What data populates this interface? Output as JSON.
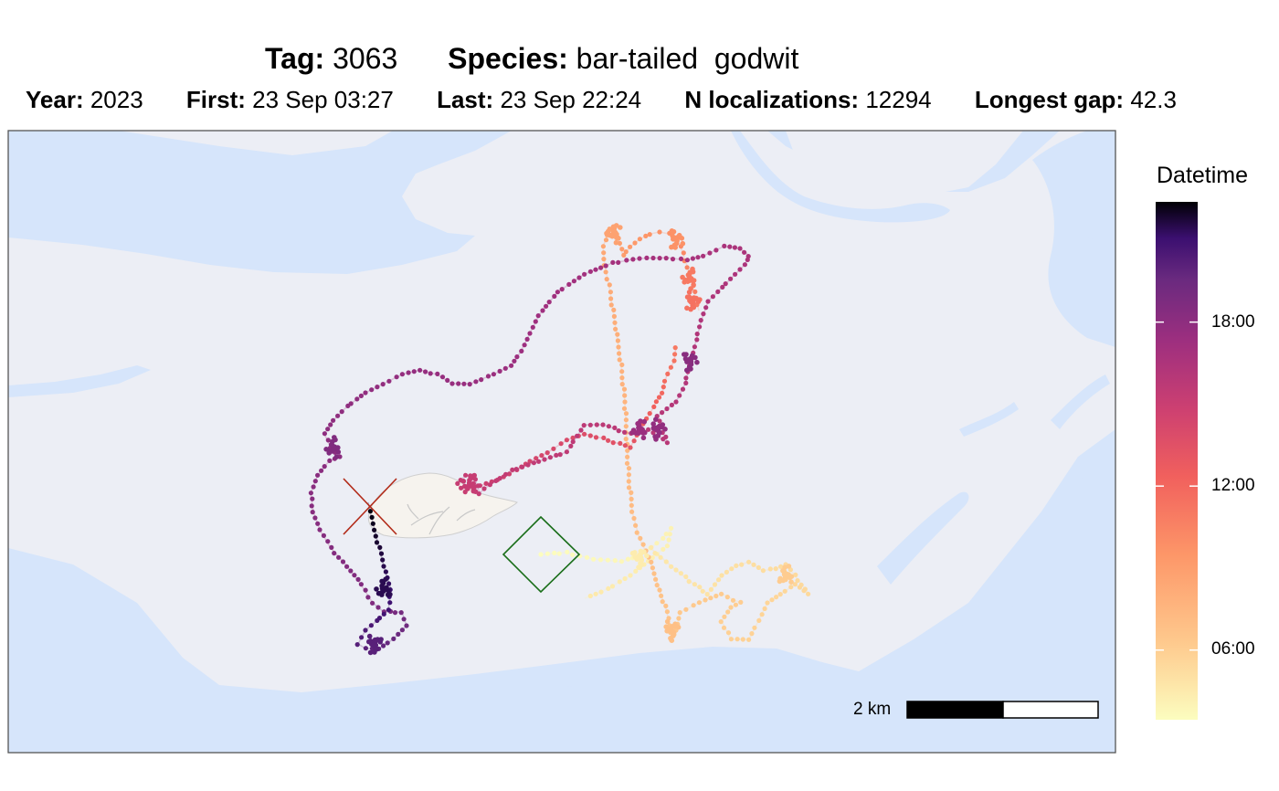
{
  "header": {
    "line1": [
      {
        "key": "Tag:",
        "value": "3063"
      },
      {
        "key": "Species:",
        "value": "bar-tailed  godwit"
      }
    ],
    "line2": [
      {
        "key": "Year:",
        "value": "2023"
      },
      {
        "key": "First:",
        "value": "23 Sep 03:27"
      },
      {
        "key": "Last:",
        "value": "23 Sep 22:24"
      },
      {
        "key": "N localizations:",
        "value": "12294"
      },
      {
        "key": "Longest gap:",
        "value": "42.3"
      }
    ]
  },
  "legend": {
    "title": "Datetime",
    "ticks": [
      "06:00",
      "12:00",
      "18:00"
    ],
    "start_hour": 3.45,
    "end_hour": 22.4,
    "tick_hours": [
      6,
      12,
      18
    ]
  },
  "scale_bar": {
    "label": "2 km"
  },
  "colors": {
    "water": "#d6e5fb",
    "land": "#eceef5",
    "island": "#f6f3ee",
    "start_marker": "#1a6e1a",
    "end_marker": "#b22a18",
    "frame": "#555555"
  },
  "markers": {
    "start_icon": "diamond-icon",
    "end_icon": "cross-icon"
  }
}
